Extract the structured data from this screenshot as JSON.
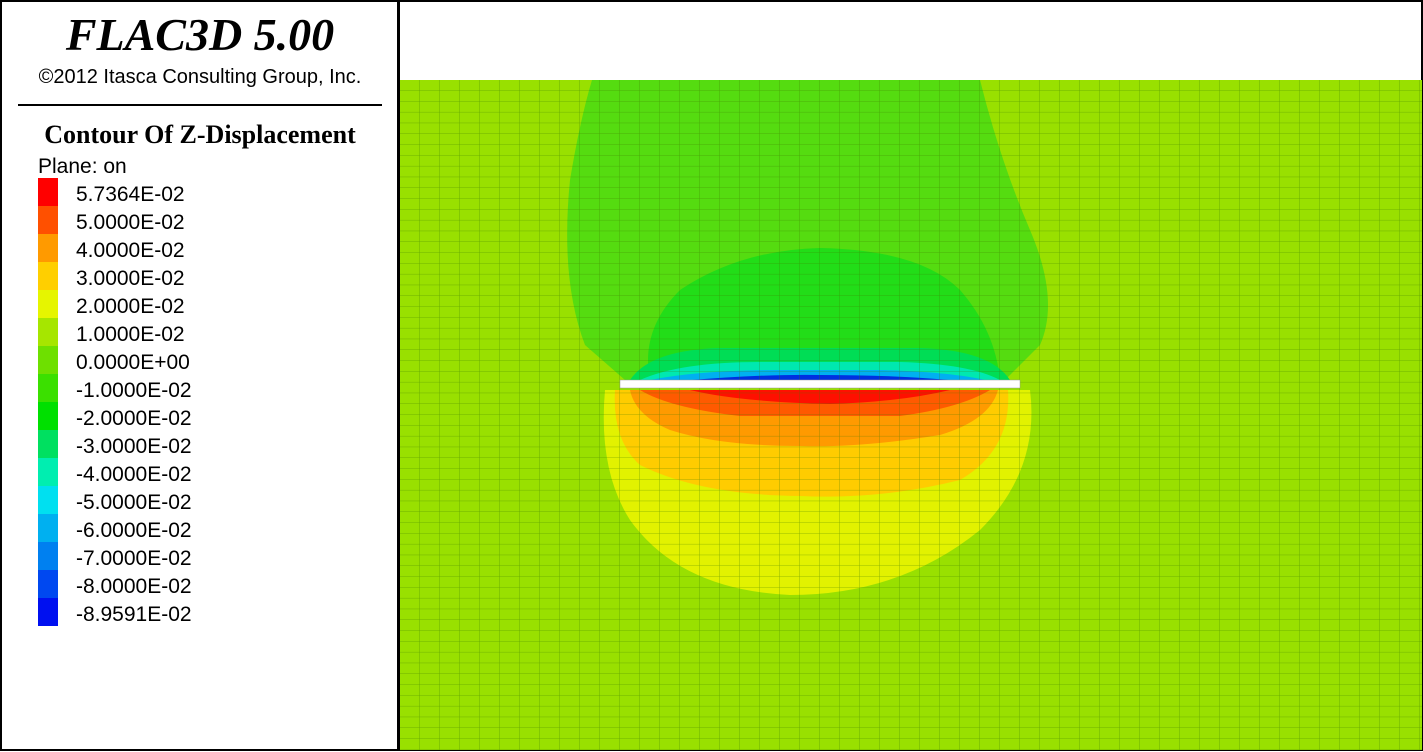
{
  "header": {
    "title": "FLAC3D 5.00",
    "copyright": "©2012 Itasca Consulting Group, Inc."
  },
  "legend": {
    "title": "Contour Of Z-Displacement",
    "plane": "Plane: on",
    "items": [
      {
        "label": "5.7364E-02",
        "color": "#ff0000"
      },
      {
        "label": "5.0000E-02",
        "color": "#ff5000"
      },
      {
        "label": "4.0000E-02",
        "color": "#ff9a00"
      },
      {
        "label": "3.0000E-02",
        "color": "#ffcf00"
      },
      {
        "label": "2.0000E-02",
        "color": "#e6f500"
      },
      {
        "label": "1.0000E-02",
        "color": "#a6e600"
      },
      {
        "label": "0.0000E+00",
        "color": "#6ee000"
      },
      {
        "label": "-1.0000E-02",
        "color": "#3be000"
      },
      {
        "label": "-2.0000E-02",
        "color": "#00e000"
      },
      {
        "label": "-3.0000E-02",
        "color": "#00e060"
      },
      {
        "label": "-4.0000E-02",
        "color": "#00eeb0"
      },
      {
        "label": "-5.0000E-02",
        "color": "#00e0f0"
      },
      {
        "label": "-6.0000E-02",
        "color": "#00b0f0"
      },
      {
        "label": "-7.0000E-02",
        "color": "#0080f0"
      },
      {
        "label": "-8.0000E-02",
        "color": "#0048f0"
      },
      {
        "label": "-8.9591E-02",
        "color": "#0010f0"
      }
    ]
  }
}
